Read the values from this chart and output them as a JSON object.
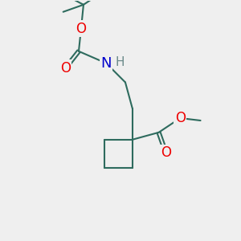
{
  "bg_color": "#efefef",
  "bond_color": "#2e6b5e",
  "bond_width": 1.5,
  "atom_colors": {
    "O": "#ee0000",
    "N": "#0000cc",
    "H": "#6a8a8a",
    "C": "#2e6b5e"
  }
}
